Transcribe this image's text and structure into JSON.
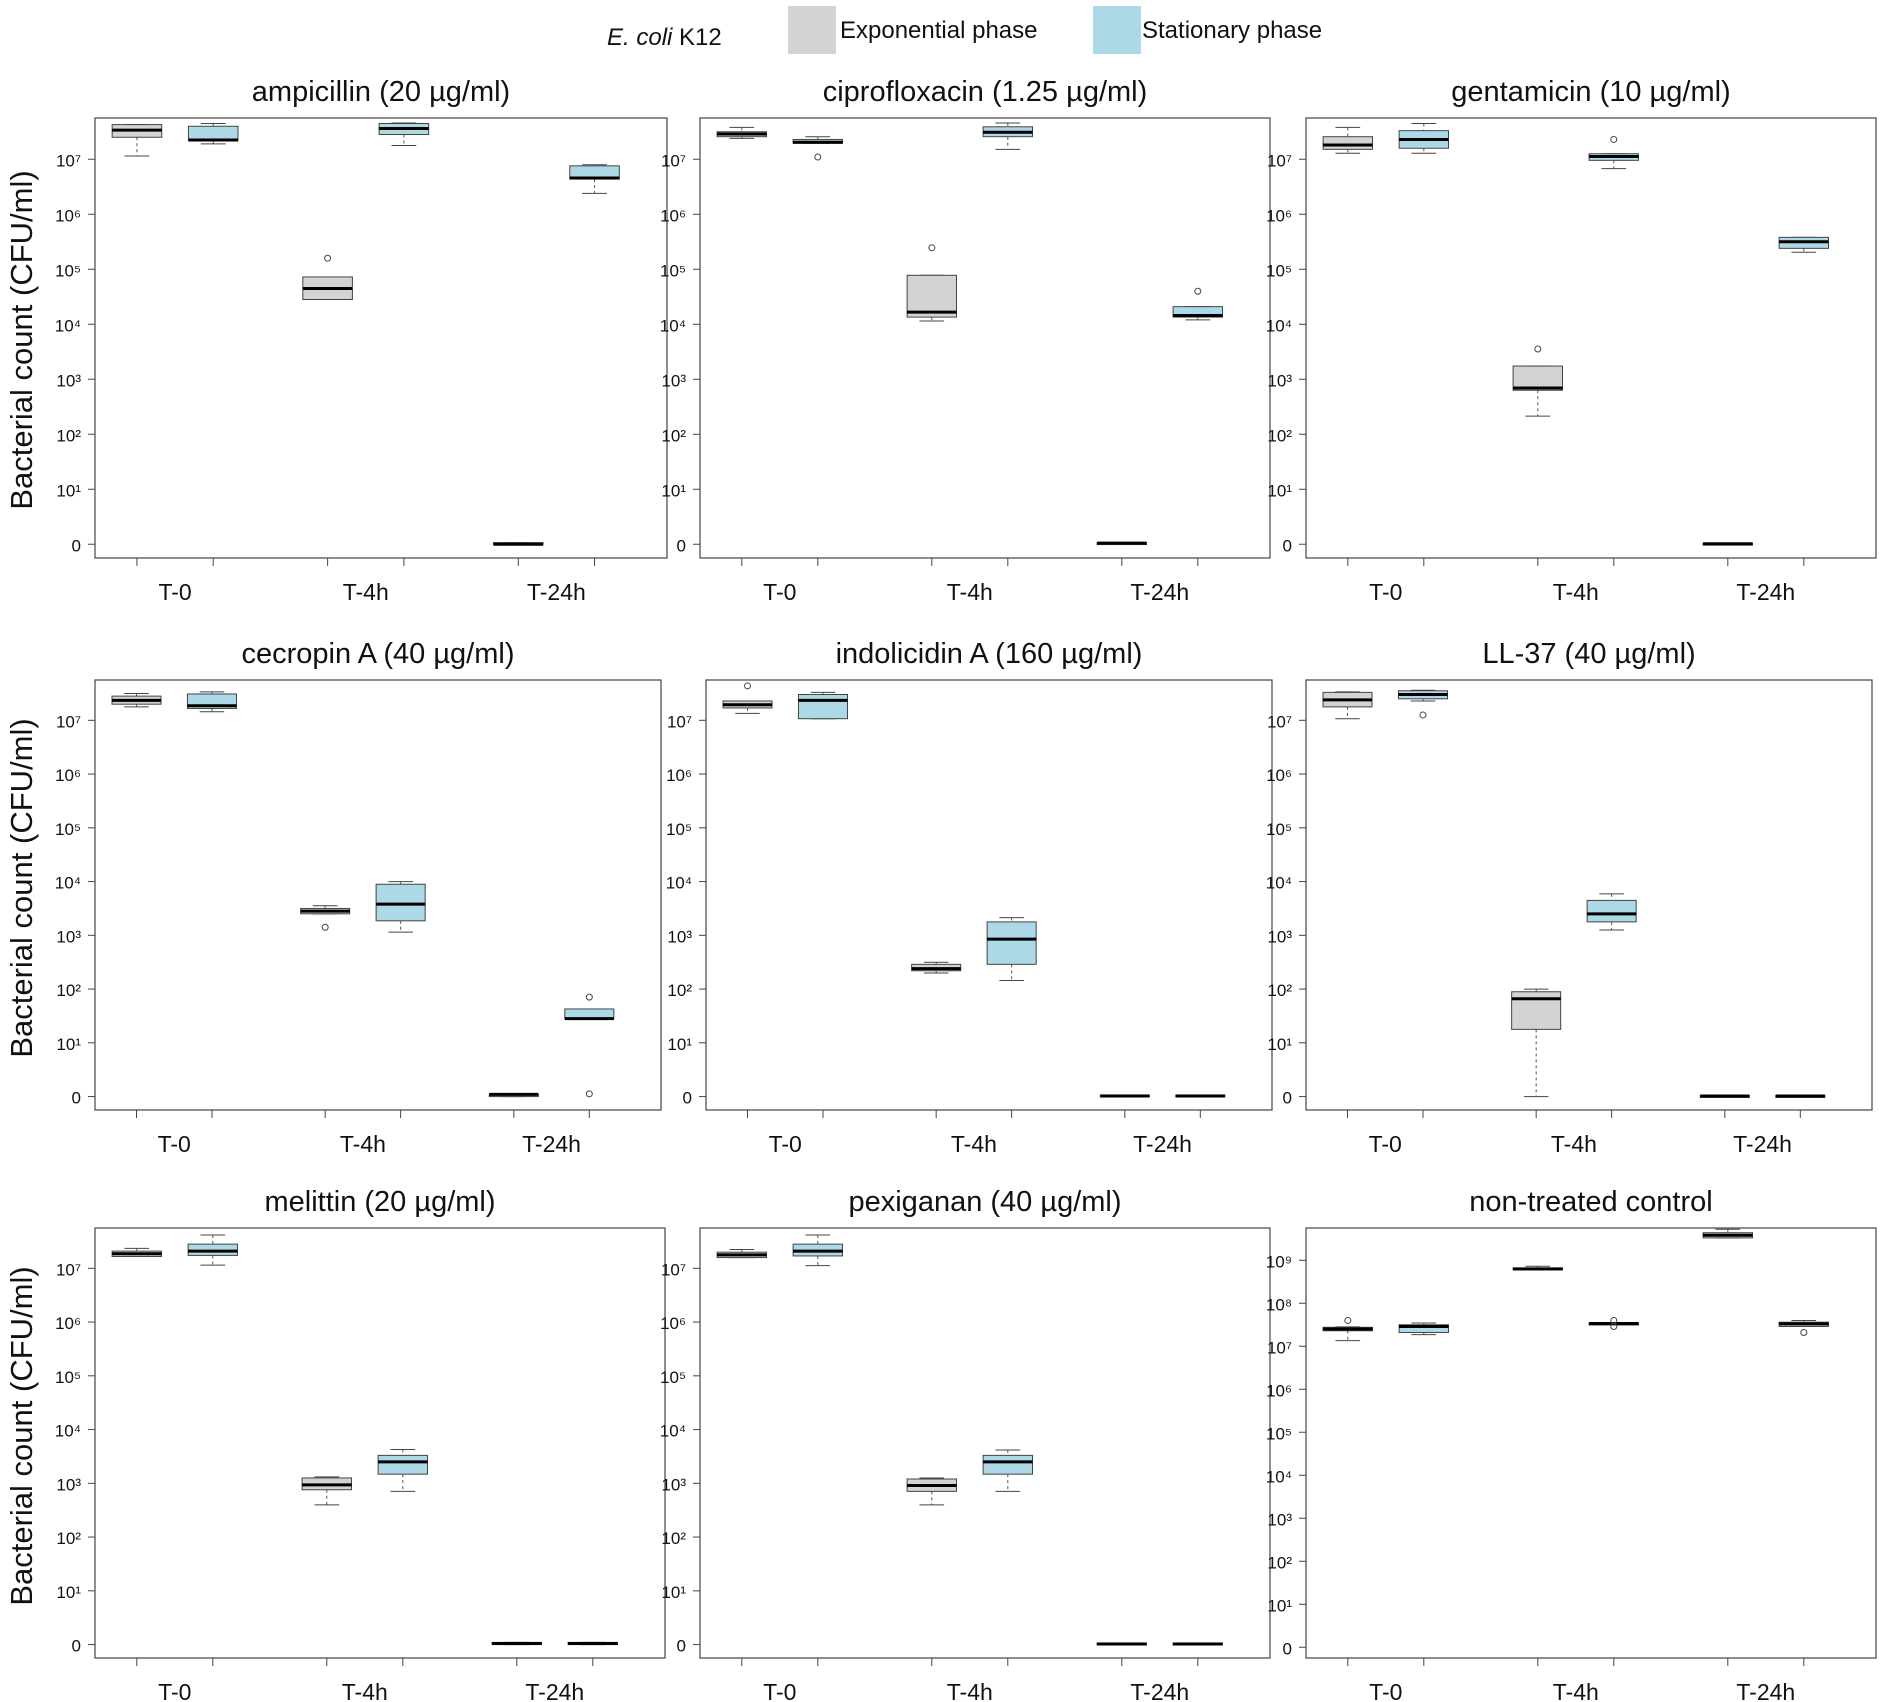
{
  "legend": {
    "species_italic": "E. coli",
    "strain": " K12",
    "items": [
      {
        "label": "Exponential phase",
        "color": "#d3d3d3"
      },
      {
        "label": "Stationary phase",
        "color": "#add8e6"
      }
    ]
  },
  "ylabel": "Bacterial count (CFU/ml)",
  "chart_data": [
    {
      "type": "box",
      "title": "ampicillin (20 µg/ml)",
      "categories": [
        "T-0",
        "T-4h",
        "T-24h"
      ],
      "ytick_exponents": [
        1,
        2,
        3,
        4,
        5,
        6,
        7
      ],
      "ylim_log10": [
        -0.25,
        7.75
      ],
      "series": [
        {
          "name": "Exponential phase",
          "boxes": [
            {
              "min": 7.06,
              "q1": 7.4,
              "median": 7.53,
              "q3": 7.63,
              "max": 7.63,
              "outliers": []
            },
            {
              "min": 4.45,
              "q1": 4.45,
              "median": 4.65,
              "q3": 4.86,
              "max": 4.86,
              "outliers": [
                5.2
              ]
            },
            {
              "min": 0,
              "q1": 0,
              "median": 0,
              "q3": 0.03,
              "max": 0.03,
              "outliers": []
            }
          ]
        },
        {
          "name": "Stationary phase",
          "boxes": [
            {
              "min": 7.28,
              "q1": 7.34,
              "median": 7.35,
              "q3": 7.6,
              "max": 7.65,
              "outliers": []
            },
            {
              "min": 7.25,
              "q1": 7.45,
              "median": 7.56,
              "q3": 7.65,
              "max": 7.66,
              "outliers": []
            },
            {
              "min": 6.38,
              "q1": 6.64,
              "median": 6.66,
              "q3": 6.88,
              "max": 6.9,
              "outliers": []
            }
          ]
        }
      ]
    },
    {
      "type": "box",
      "title": "ciprofloxacin (1.25 µg/ml)",
      "categories": [
        "T-0",
        "T-4h",
        "T-24h"
      ],
      "ytick_exponents": [
        1,
        2,
        3,
        4,
        5,
        6,
        7
      ],
      "ylim_log10": [
        -0.25,
        7.75
      ],
      "series": [
        {
          "name": "Exponential phase",
          "boxes": [
            {
              "min": 7.38,
              "q1": 7.41,
              "median": 7.46,
              "q3": 7.5,
              "max": 7.58,
              "outliers": []
            },
            {
              "min": 4.06,
              "q1": 4.13,
              "median": 4.22,
              "q3": 4.89,
              "max": 4.89,
              "outliers": [
                5.39
              ]
            },
            {
              "min": 0,
              "q1": 0,
              "median": 0.02,
              "q3": 0.03,
              "max": 0.03,
              "outliers": []
            }
          ]
        },
        {
          "name": "Stationary phase",
          "boxes": [
            {
              "min": 7.29,
              "q1": 7.29,
              "median": 7.31,
              "q3": 7.36,
              "max": 7.41,
              "outliers": [
                7.04
              ]
            },
            {
              "min": 7.18,
              "q1": 7.41,
              "median": 7.49,
              "q3": 7.59,
              "max": 7.66,
              "outliers": []
            },
            {
              "min": 4.08,
              "q1": 4.13,
              "median": 4.16,
              "q3": 4.32,
              "max": 4.32,
              "outliers": [
                4.6
              ]
            }
          ]
        }
      ]
    },
    {
      "type": "box",
      "title": "gentamicin (10 µg/ml)",
      "categories": [
        "T-0",
        "T-4h",
        "T-24h"
      ],
      "ytick_exponents": [
        1,
        2,
        3,
        4,
        5,
        6,
        7
      ],
      "ylim_log10": [
        -0.25,
        7.75
      ],
      "series": [
        {
          "name": "Exponential phase",
          "boxes": [
            {
              "min": 7.11,
              "q1": 7.18,
              "median": 7.26,
              "q3": 7.41,
              "max": 7.58,
              "outliers": []
            },
            {
              "min": 2.33,
              "q1": 2.8,
              "median": 2.84,
              "q3": 3.24,
              "max": 3.24,
              "outliers": [
                3.55
              ]
            },
            {
              "min": 0,
              "q1": 0,
              "median": 0.01,
              "q3": 0.02,
              "max": 0.02,
              "outliers": []
            }
          ]
        },
        {
          "name": "Stationary phase",
          "boxes": [
            {
              "min": 7.11,
              "q1": 7.2,
              "median": 7.36,
              "q3": 7.52,
              "max": 7.65,
              "outliers": []
            },
            {
              "min": 6.83,
              "q1": 6.98,
              "median": 7.05,
              "q3": 7.1,
              "max": 7.1,
              "outliers": [
                7.36
              ]
            },
            {
              "min": 5.31,
              "q1": 5.38,
              "median": 5.5,
              "q3": 5.58,
              "max": 5.58,
              "outliers": []
            }
          ]
        }
      ]
    },
    {
      "type": "box",
      "title": "cecropin A (40 µg/ml)",
      "categories": [
        "T-0",
        "T-4h",
        "T-24h"
      ],
      "ytick_exponents": [
        1,
        2,
        3,
        4,
        5,
        6,
        7
      ],
      "ylim_log10": [
        -0.25,
        7.75
      ],
      "series": [
        {
          "name": "Exponential phase",
          "boxes": [
            {
              "min": 7.25,
              "q1": 7.3,
              "median": 7.37,
              "q3": 7.45,
              "max": 7.5,
              "outliers": []
            },
            {
              "min": 3.4,
              "q1": 3.4,
              "median": 3.45,
              "q3": 3.5,
              "max": 3.55,
              "outliers": [
                3.15
              ]
            },
            {
              "min": 0,
              "q1": 0,
              "median": 0.04,
              "q3": 0.04,
              "max": 0.04,
              "outliers": []
            }
          ]
        },
        {
          "name": "Stationary phase",
          "boxes": [
            {
              "min": 7.16,
              "q1": 7.22,
              "median": 7.27,
              "q3": 7.49,
              "max": 7.53,
              "outliers": []
            },
            {
              "min": 3.06,
              "q1": 3.27,
              "median": 3.58,
              "q3": 3.95,
              "max": 4.0,
              "outliers": []
            },
            {
              "min": 1.45,
              "q1": 1.45,
              "median": 1.45,
              "q3": 1.63,
              "max": 1.63,
              "outliers": [
                1.85,
                0.05
              ]
            }
          ]
        }
      ]
    },
    {
      "type": "box",
      "title": "indolicidin A (160 µg/ml)",
      "categories": [
        "T-0",
        "T-4h",
        "T-24h"
      ],
      "ytick_exponents": [
        1,
        2,
        3,
        4,
        5,
        6,
        7
      ],
      "ylim_log10": [
        -0.25,
        7.75
      ],
      "series": [
        {
          "name": "Exponential phase",
          "boxes": [
            {
              "min": 7.13,
              "q1": 7.23,
              "median": 7.29,
              "q3": 7.36,
              "max": 7.36,
              "outliers": [
                7.64
              ]
            },
            {
              "min": 2.3,
              "q1": 2.34,
              "median": 2.38,
              "q3": 2.46,
              "max": 2.5,
              "outliers": []
            },
            {
              "min": 0,
              "q1": 0,
              "median": 0.01,
              "q3": 0.03,
              "max": 0.03,
              "outliers": []
            }
          ]
        },
        {
          "name": "Stationary phase",
          "boxes": [
            {
              "min": 7.03,
              "q1": 7.03,
              "median": 7.37,
              "q3": 7.48,
              "max": 7.52,
              "outliers": []
            },
            {
              "min": 2.16,
              "q1": 2.46,
              "median": 2.93,
              "q3": 3.25,
              "max": 3.33,
              "outliers": []
            },
            {
              "min": 0,
              "q1": 0,
              "median": 0.01,
              "q3": 0.03,
              "max": 0.03,
              "outliers": []
            }
          ]
        }
      ]
    },
    {
      "type": "box",
      "title": "LL-37 (40 µg/ml)",
      "categories": [
        "T-0",
        "T-4h",
        "T-24h"
      ],
      "ytick_exponents": [
        1,
        2,
        3,
        4,
        5,
        6,
        7
      ],
      "ylim_log10": [
        -0.25,
        7.75
      ],
      "series": [
        {
          "name": "Exponential phase",
          "boxes": [
            {
              "min": 7.03,
              "q1": 7.25,
              "median": 7.38,
              "q3": 7.52,
              "max": 7.53,
              "outliers": []
            },
            {
              "min": 0,
              "q1": 1.25,
              "median": 1.82,
              "q3": 1.95,
              "max": 2.0,
              "outliers": []
            },
            {
              "min": 0,
              "q1": 0,
              "median": 0.01,
              "q3": 0.02,
              "max": 0.02,
              "outliers": []
            }
          ]
        },
        {
          "name": "Stationary phase",
          "boxes": [
            {
              "min": 7.36,
              "q1": 7.4,
              "median": 7.48,
              "q3": 7.55,
              "max": 7.56,
              "outliers": [
                7.1
              ]
            },
            {
              "min": 3.1,
              "q1": 3.25,
              "median": 3.4,
              "q3": 3.65,
              "max": 3.77,
              "outliers": []
            },
            {
              "min": 0,
              "q1": 0,
              "median": 0.01,
              "q3": 0.02,
              "max": 0.02,
              "outliers": []
            }
          ]
        }
      ]
    },
    {
      "type": "box",
      "title": "melittin (20 µg/ml)",
      "categories": [
        "T-0",
        "T-4h",
        "T-24h"
      ],
      "ytick_exponents": [
        1,
        2,
        3,
        4,
        5,
        6,
        7
      ],
      "ylim_log10": [
        -0.25,
        7.75
      ],
      "series": [
        {
          "name": "Exponential phase",
          "boxes": [
            {
              "min": 7.22,
              "q1": 7.22,
              "median": 7.27,
              "q3": 7.32,
              "max": 7.37,
              "outliers": []
            },
            {
              "min": 2.6,
              "q1": 2.88,
              "median": 2.97,
              "q3": 3.1,
              "max": 3.12,
              "outliers": []
            },
            {
              "min": 0,
              "q1": 0,
              "median": 0.02,
              "q3": 0.04,
              "max": 0.04,
              "outliers": []
            }
          ]
        },
        {
          "name": "Stationary phase",
          "boxes": [
            {
              "min": 7.06,
              "q1": 7.24,
              "median": 7.32,
              "q3": 7.45,
              "max": 7.62,
              "outliers": []
            },
            {
              "min": 2.85,
              "q1": 3.17,
              "median": 3.4,
              "q3": 3.52,
              "max": 3.63,
              "outliers": []
            },
            {
              "min": 0,
              "q1": 0,
              "median": 0.02,
              "q3": 0.04,
              "max": 0.04,
              "outliers": []
            }
          ]
        }
      ]
    },
    {
      "type": "box",
      "title": "pexiganan (40 µg/ml)",
      "categories": [
        "T-0",
        "T-4h",
        "T-24h"
      ],
      "ytick_exponents": [
        1,
        2,
        3,
        4,
        5,
        6,
        7
      ],
      "ylim_log10": [
        -0.25,
        7.75
      ],
      "series": [
        {
          "name": "Exponential phase",
          "boxes": [
            {
              "min": 7.2,
              "q1": 7.2,
              "median": 7.25,
              "q3": 7.3,
              "max": 7.35,
              "outliers": []
            },
            {
              "min": 2.6,
              "q1": 2.85,
              "median": 2.96,
              "q3": 3.08,
              "max": 3.1,
              "outliers": []
            },
            {
              "min": 0,
              "q1": 0,
              "median": 0.01,
              "q3": 0.03,
              "max": 0.03,
              "outliers": []
            }
          ]
        },
        {
          "name": "Stationary phase",
          "boxes": [
            {
              "min": 7.05,
              "q1": 7.23,
              "median": 7.32,
              "q3": 7.45,
              "max": 7.62,
              "outliers": []
            },
            {
              "min": 2.85,
              "q1": 3.17,
              "median": 3.4,
              "q3": 3.52,
              "max": 3.62,
              "outliers": []
            },
            {
              "min": 0,
              "q1": 0,
              "median": 0.01,
              "q3": 0.03,
              "max": 0.03,
              "outliers": []
            }
          ]
        }
      ]
    },
    {
      "type": "box",
      "title": "non-treated control",
      "categories": [
        "T-0",
        "T-4h",
        "T-24h"
      ],
      "ytick_exponents": [
        1,
        2,
        3,
        4,
        5,
        6,
        7,
        8,
        9
      ],
      "ylim_log10": [
        -0.25,
        9.75
      ],
      "series": [
        {
          "name": "Exponential phase",
          "boxes": [
            {
              "min": 7.13,
              "q1": 7.36,
              "median": 7.4,
              "q3": 7.44,
              "max": 7.45,
              "outliers": [
                7.6
              ]
            },
            {
              "min": 8.78,
              "q1": 8.78,
              "median": 8.8,
              "q3": 8.82,
              "max": 8.86,
              "outliers": []
            },
            {
              "min": 9.52,
              "q1": 9.52,
              "median": 9.58,
              "q3": 9.64,
              "max": 9.72,
              "outliers": []
            }
          ]
        },
        {
          "name": "Stationary phase",
          "boxes": [
            {
              "min": 7.27,
              "q1": 7.32,
              "median": 7.46,
              "q3": 7.5,
              "max": 7.54,
              "outliers": []
            },
            {
              "min": 7.52,
              "q1": 7.52,
              "median": 7.53,
              "q3": 7.54,
              "max": 7.54,
              "outliers": [
                7.46,
                7.6
              ]
            },
            {
              "min": 7.46,
              "q1": 7.46,
              "median": 7.52,
              "q3": 7.56,
              "max": 7.6,
              "outliers": [
                7.32
              ]
            }
          ]
        }
      ]
    }
  ]
}
